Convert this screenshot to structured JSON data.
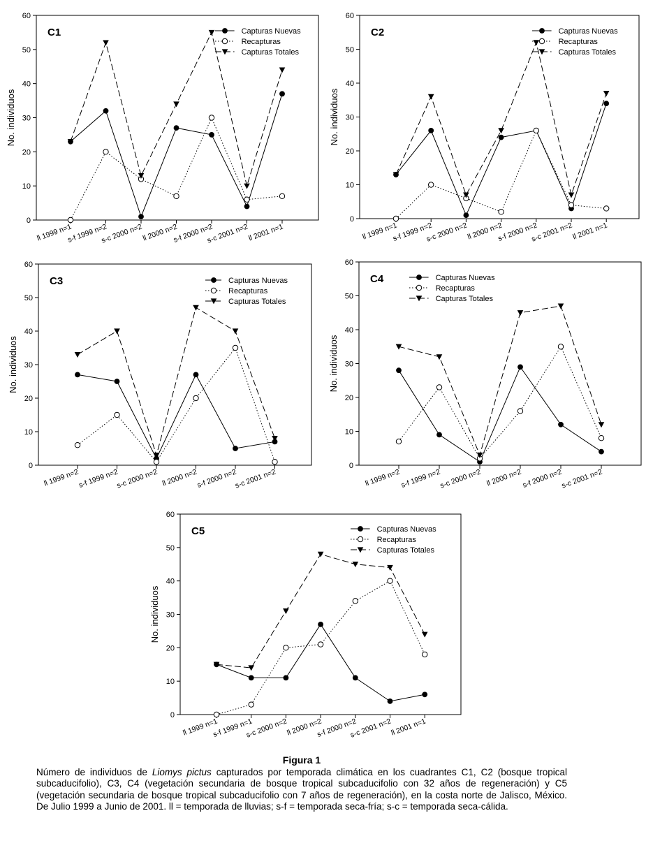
{
  "figure": {
    "title": "Figura 1",
    "caption_before": "Número de individuos de ",
    "caption_species": "Liomys pictus",
    "caption_after": " capturados por temporada climática en los cuadrantes C1, C2 (bosque tropical subcaducifolio), C3, C4 (vegetación secundaria de bosque tropical subcaducifolio con 32 años de regeneración) y C5 (vegetación secundaria de bosque tropical subcaducifolio con 7 años de regeneración), en la costa norte de Jalisco, México. De Julio 1999 a Junio de 2001. ll = temporada de lluvias; s-f = temporada seca-fría; s-c = temporada seca-cálida."
  },
  "chart_data": [
    {
      "type": "line",
      "title": "C1",
      "ylabel": "No. individuos",
      "xlabel": "",
      "ylim": [
        0,
        60
      ],
      "yticks": [
        0,
        10,
        20,
        30,
        40,
        50,
        60
      ],
      "legend": "top-right",
      "categories": [
        "ll 1999 n=1",
        "s-f 1999 n=2",
        "s-c 2000 n=2",
        "ll 2000 n=2",
        "s-f 2000 n=2",
        "s-c 2001 n=2",
        "ll 2001 n=1"
      ],
      "series": [
        {
          "name": "Capturas Nuevas",
          "values": [
            23,
            32,
            1,
            27,
            25,
            4,
            37
          ]
        },
        {
          "name": "Recapturas",
          "values": [
            0,
            20,
            12,
            7,
            30,
            6,
            7
          ]
        },
        {
          "name": "Capturas Totales",
          "values": [
            23,
            52,
            13,
            34,
            55,
            10,
            44
          ]
        }
      ]
    },
    {
      "type": "line",
      "title": "C2",
      "ylabel": "No. individuos",
      "xlabel": "",
      "ylim": [
        0,
        60
      ],
      "yticks": [
        0,
        10,
        20,
        30,
        40,
        50,
        60
      ],
      "legend": "top-right",
      "categories": [
        "ll 1999 n=1",
        "s-f 1999 n=2",
        "s-c 2000 n=2",
        "ll 2000 n=2",
        "s-f 2000 n=2",
        "s-c 2001 n=2",
        "ll 2001 n=1"
      ],
      "series": [
        {
          "name": "Capturas Nuevas",
          "values": [
            13,
            26,
            1,
            24,
            26,
            3,
            34
          ]
        },
        {
          "name": "Recapturas",
          "values": [
            0,
            10,
            6,
            2,
            26,
            4,
            3
          ]
        },
        {
          "name": "Capturas Totales",
          "values": [
            13,
            36,
            7,
            26,
            52,
            7,
            37
          ]
        }
      ]
    },
    {
      "type": "line",
      "title": "C3",
      "ylabel": "No. individuos",
      "xlabel": "",
      "ylim": [
        0,
        60
      ],
      "yticks": [
        0,
        10,
        20,
        30,
        40,
        50,
        60
      ],
      "legend": "top-right",
      "categories": [
        "ll 1999 n=2",
        "s-f 1999 n=2",
        "s-c 2000 n=2",
        "ll 2000 n=2",
        "s-f 2000 n=2",
        "s-c 2001 n=2"
      ],
      "series": [
        {
          "name": "Capturas Nuevas",
          "values": [
            27,
            25,
            2,
            27,
            5,
            7
          ]
        },
        {
          "name": "Recapturas",
          "values": [
            6,
            15,
            1,
            20,
            35,
            1
          ]
        },
        {
          "name": "Capturas Totales",
          "values": [
            33,
            40,
            3,
            47,
            40,
            8
          ]
        }
      ]
    },
    {
      "type": "line",
      "title": "C4",
      "ylabel": "No. individuos",
      "xlabel": "",
      "ylim": [
        0,
        60
      ],
      "yticks": [
        0,
        10,
        20,
        30,
        40,
        50,
        60
      ],
      "legend": "top-left",
      "categories": [
        "ll 1999 n=2",
        "s-f 1999 n=2",
        "s-c 2000 n=2",
        "ll 2000 n=2",
        "s-f 2000 n=2",
        "s-c 2001 n=2"
      ],
      "series": [
        {
          "name": "Capturas Nuevas",
          "values": [
            28,
            9,
            1,
            29,
            12,
            4
          ]
        },
        {
          "name": "Recapturas",
          "values": [
            7,
            23,
            2,
            16,
            35,
            8
          ]
        },
        {
          "name": "Capturas Totales",
          "values": [
            35,
            32,
            3,
            45,
            47,
            12
          ]
        }
      ]
    },
    {
      "type": "line",
      "title": "C5",
      "ylabel": "No. individuos",
      "xlabel": "",
      "ylim": [
        0,
        60
      ],
      "yticks": [
        0,
        10,
        20,
        30,
        40,
        50,
        60
      ],
      "legend": "top-right",
      "categories": [
        "ll 1999 n=1",
        "s-f 1999 n=1",
        "s-c 2000 n=2",
        "ll 2000 n=2",
        "s-f 2000 n=2",
        "s-c 2001 n=2",
        "ll 2001 n=1"
      ],
      "series": [
        {
          "name": "Capturas Nuevas",
          "values": [
            15,
            11,
            11,
            27,
            11,
            4,
            6
          ]
        },
        {
          "name": "Recapturas",
          "values": [
            0,
            3,
            20,
            21,
            34,
            40,
            18
          ]
        },
        {
          "name": "Capturas Totales",
          "values": [
            15,
            14,
            31,
            48,
            45,
            44,
            24
          ]
        }
      ]
    }
  ]
}
